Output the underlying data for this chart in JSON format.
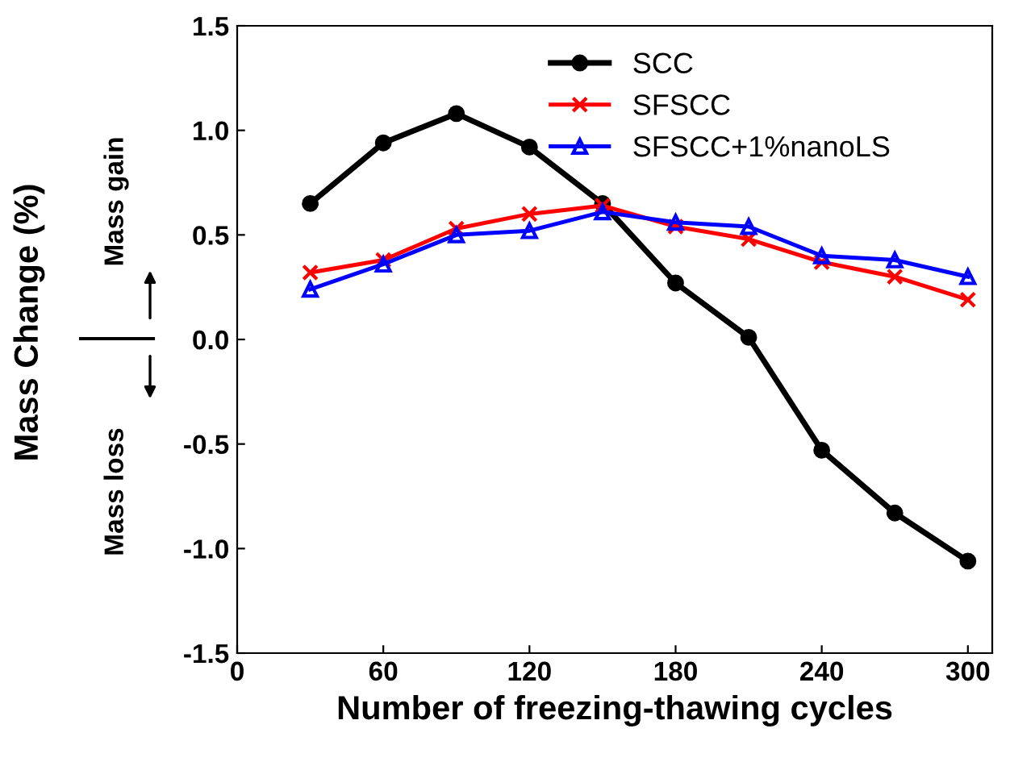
{
  "chart_data": {
    "type": "line",
    "xlabel": "Number of freezing-thawing cycles",
    "ylabel": "Mass Change (%)",
    "annotations": [
      "Mass gain",
      "Mass loss"
    ],
    "x": [
      30,
      60,
      90,
      120,
      150,
      180,
      210,
      240,
      270,
      300
    ],
    "series": [
      {
        "name": "SCC",
        "color": "#000000",
        "marker": "circle",
        "values": [
          0.65,
          0.94,
          1.08,
          0.92,
          0.65,
          0.27,
          0.01,
          -0.53,
          -0.83,
          -1.06
        ]
      },
      {
        "name": "SFSCC",
        "color": "#ff0000",
        "marker": "cross",
        "values": [
          0.32,
          0.38,
          0.53,
          0.6,
          0.64,
          0.54,
          0.48,
          0.37,
          0.3,
          0.19
        ]
      },
      {
        "name": "SFSCC+1%nanoLS",
        "color": "#0000ff",
        "marker": "triangle",
        "values": [
          0.24,
          0.36,
          0.5,
          0.52,
          0.61,
          0.56,
          0.54,
          0.4,
          0.38,
          0.3
        ]
      }
    ],
    "xlim": [
      0,
      310
    ],
    "xticks": [
      0,
      60,
      120,
      180,
      240,
      300
    ],
    "ylim": [
      -1.5,
      1.5
    ],
    "yticks": [
      {
        "value": -1.5,
        "label": "-1.5"
      },
      {
        "value": -1.0,
        "label": "-1.0"
      },
      {
        "value": -0.5,
        "label": "-0.5"
      },
      {
        "value": 0,
        "label": "0.0"
      },
      {
        "value": 0.5,
        "label": "0.5"
      },
      {
        "value": 1.0,
        "label": "1.0"
      },
      {
        "value": 1.5,
        "label": "1.5"
      }
    ],
    "legend": "top right",
    "grid": false,
    "line_style": "solid"
  }
}
